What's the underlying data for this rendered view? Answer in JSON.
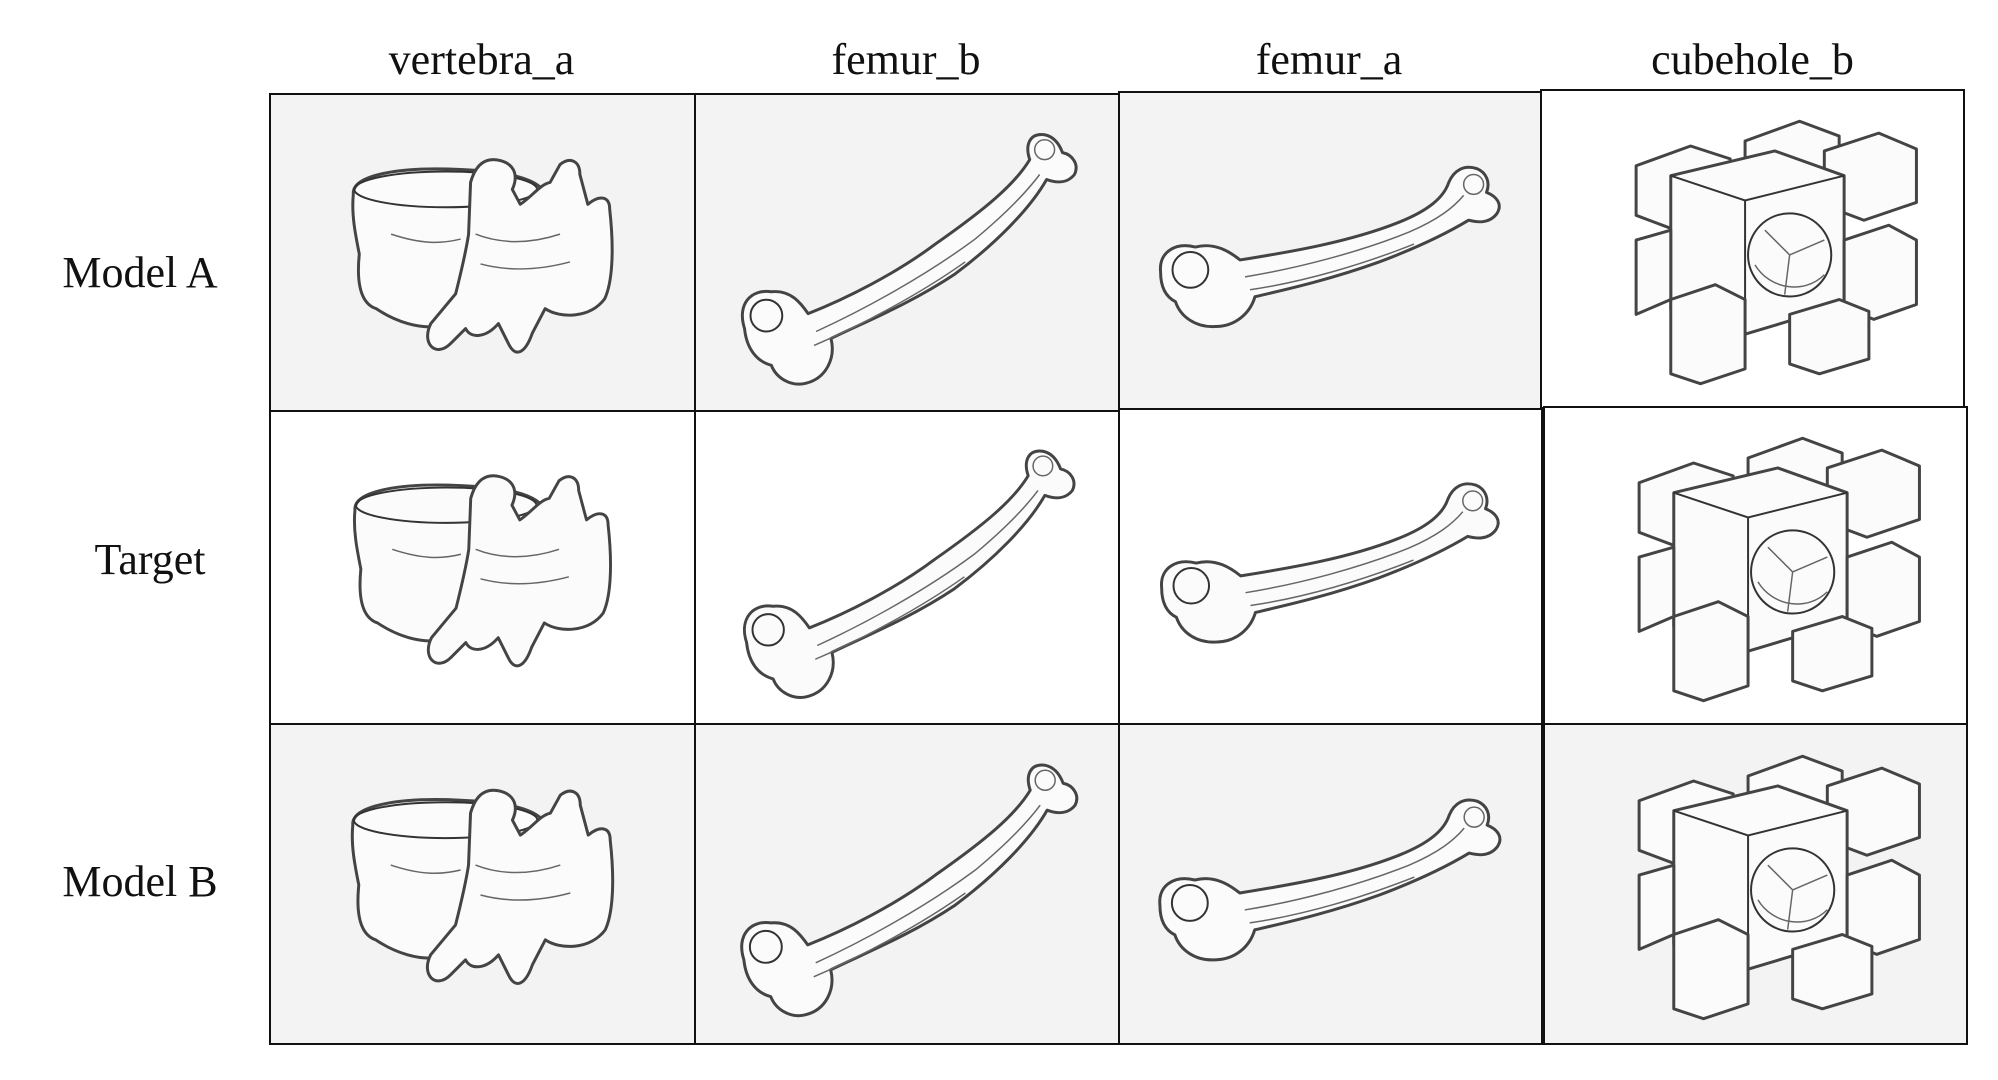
{
  "columns": [
    "vertebra_a",
    "femur_b",
    "femur_a",
    "cubehole_b"
  ],
  "rows": [
    "Model A",
    "Target",
    "Model B"
  ]
}
